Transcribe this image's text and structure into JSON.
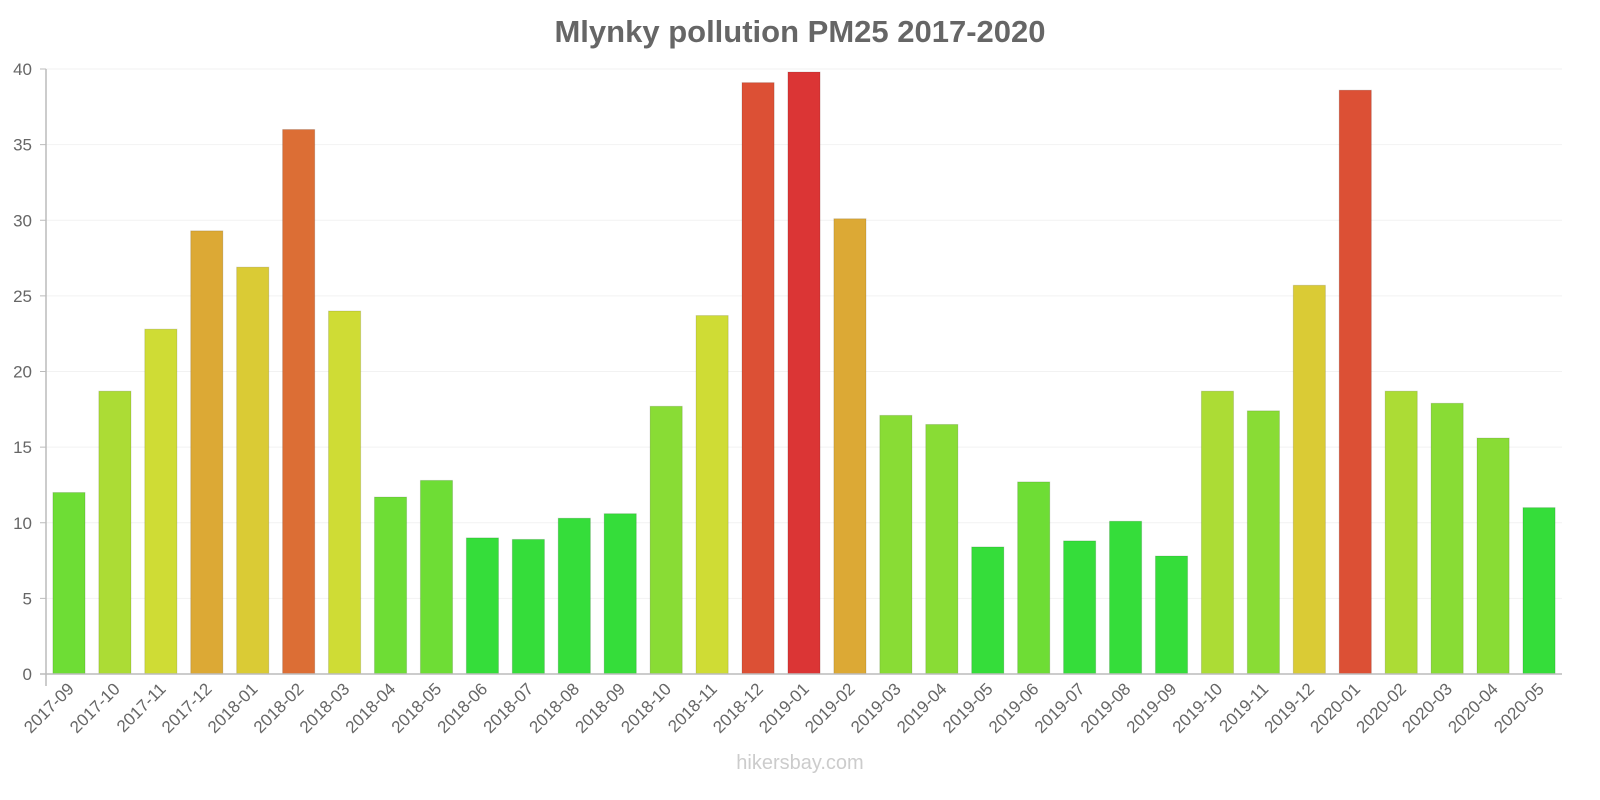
{
  "chart_data": {
    "type": "bar",
    "title": "Mlynky pollution PM25 2017-2020",
    "xlabel": "",
    "ylabel": "",
    "ylim": [
      0,
      40
    ],
    "yticks": [
      0,
      5,
      10,
      15,
      20,
      25,
      30,
      35,
      40
    ],
    "grid": true,
    "legend": null,
    "categories": [
      "2017-09",
      "2017-10",
      "2017-11",
      "2017-12",
      "2018-01",
      "2018-02",
      "2018-03",
      "2018-04",
      "2018-05",
      "2018-06",
      "2018-07",
      "2018-08",
      "2018-09",
      "2018-10",
      "2018-11",
      "2018-12",
      "2019-01",
      "2019-02",
      "2019-03",
      "2019-04",
      "2019-05",
      "2019-06",
      "2019-07",
      "2019-08",
      "2019-09",
      "2019-10",
      "2019-11",
      "2019-12",
      "2020-01",
      "2020-02",
      "2020-03",
      "2020-04",
      "2020-05"
    ],
    "values": [
      12.0,
      18.7,
      22.8,
      29.3,
      26.9,
      36.0,
      24.0,
      11.7,
      12.8,
      9.0,
      8.9,
      10.3,
      10.6,
      17.7,
      23.7,
      39.1,
      39.8,
      30.1,
      17.1,
      16.5,
      8.4,
      12.7,
      8.8,
      10.1,
      7.8,
      18.7,
      17.4,
      25.7,
      38.6,
      18.7,
      17.9,
      15.6,
      11.0
    ],
    "colors": [
      "#6edd35",
      "#acdc35",
      "#cfdc35",
      "#dca935",
      "#dacb35",
      "#dc6e35",
      "#cfdc35",
      "#6edd35",
      "#6edd35",
      "#35dd3a",
      "#35dd3a",
      "#35dd3a",
      "#35dd3a",
      "#89dc35",
      "#cfdc35",
      "#dc5035",
      "#db3535",
      "#dca935",
      "#89dc35",
      "#89dc35",
      "#35dd3a",
      "#6edd35",
      "#35dd3a",
      "#35dd3a",
      "#35dd3a",
      "#acdc35",
      "#89dc35",
      "#dacb35",
      "#dc5035",
      "#acdc35",
      "#89dc35",
      "#89dc35",
      "#35dd3a"
    ]
  },
  "watermark": "hikersbay.com"
}
